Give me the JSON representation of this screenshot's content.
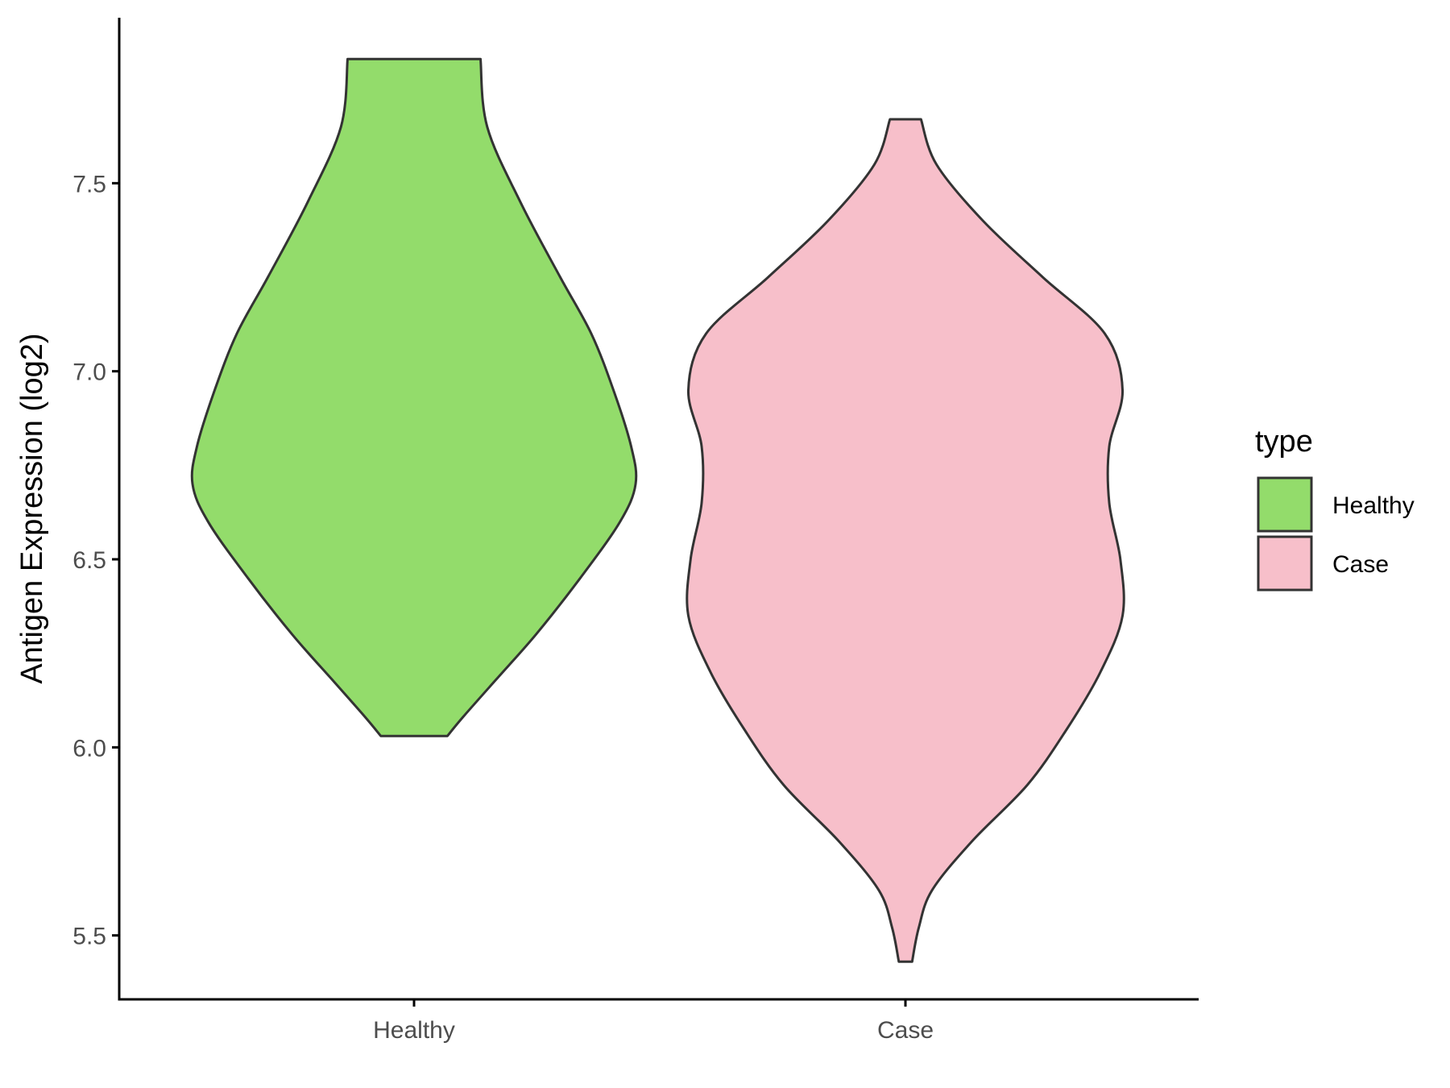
{
  "chart_data": {
    "type": "violin",
    "xlabel": "",
    "ylabel": "Antigen Expression (log2)",
    "ylim": [
      5.33,
      7.94
    ],
    "yticks": [
      5.5,
      6.0,
      6.5,
      7.0,
      7.5
    ],
    "ytick_labels": [
      "5.5",
      "6.0",
      "6.5",
      "7.0",
      "7.5"
    ],
    "categories": [
      "Healthy",
      "Case"
    ],
    "grid": false,
    "legend": {
      "title": "type",
      "placement": "right",
      "entries": [
        "Healthy",
        "Case"
      ]
    },
    "series": [
      {
        "name": "Healthy",
        "color": "#93dc6b",
        "y_min": 6.03,
        "y_max": 7.83,
        "density_profile": [
          [
            6.03,
            0.15
          ],
          [
            6.08,
            0.22
          ],
          [
            6.18,
            0.37
          ],
          [
            6.3,
            0.55
          ],
          [
            6.45,
            0.75
          ],
          [
            6.6,
            0.93
          ],
          [
            6.7,
            1.0
          ],
          [
            6.8,
            0.98
          ],
          [
            6.95,
            0.9
          ],
          [
            7.1,
            0.8
          ],
          [
            7.25,
            0.66
          ],
          [
            7.45,
            0.48
          ],
          [
            7.65,
            0.33
          ],
          [
            7.83,
            0.3
          ]
        ]
      },
      {
        "name": "Case",
        "color": "#f7bfca",
        "y_min": 5.43,
        "y_max": 7.67,
        "density_profile": [
          [
            5.43,
            0.03
          ],
          [
            5.52,
            0.06
          ],
          [
            5.62,
            0.12
          ],
          [
            5.75,
            0.3
          ],
          [
            5.9,
            0.55
          ],
          [
            6.05,
            0.73
          ],
          [
            6.2,
            0.88
          ],
          [
            6.35,
            0.98
          ],
          [
            6.5,
            0.97
          ],
          [
            6.65,
            0.92
          ],
          [
            6.8,
            0.92
          ],
          [
            6.95,
            0.98
          ],
          [
            7.1,
            0.9
          ],
          [
            7.25,
            0.62
          ],
          [
            7.4,
            0.35
          ],
          [
            7.55,
            0.14
          ],
          [
            7.67,
            0.07
          ]
        ]
      }
    ]
  }
}
